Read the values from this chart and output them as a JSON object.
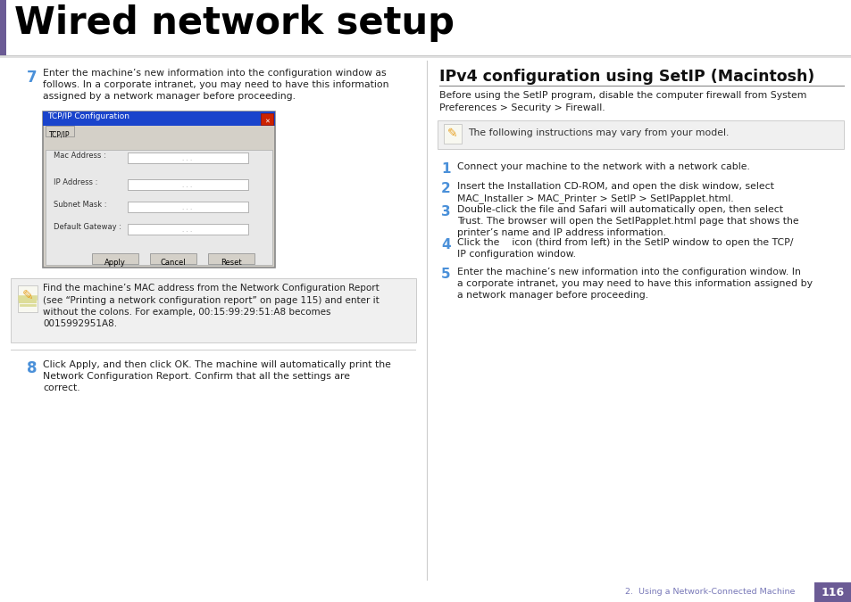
{
  "title": "Wired network setup",
  "title_color": "#000000",
  "accent_color": "#6B5B95",
  "bg_color": "#ffffff",
  "footer_text": "2.  Using a Network-Connected Machine",
  "footer_page": "116",
  "footer_bg": "#6B5B95",
  "footer_text_color": "#7878b8",
  "step_num_color": "#4a90d9",
  "note_bg_color": "#f0f0f0",
  "note_border_color": "#cccccc",
  "dialog_title_bg": "#1a44cc",
  "dialog_bg": "#d4d0c8",
  "dialog_border": "#888888",
  "section_left": {
    "step7_text_lines": [
      "Enter the machine’s new information into the configuration window as",
      "follows. In a corporate intranet, you may need to have this information",
      "assigned by a network manager before proceeding."
    ],
    "note_lines": [
      "Find the machine’s MAC address from the Network Configuration Report",
      "(see “Printing a network configuration report” on page 115) and enter it",
      "without the colons. For example, 00:15:99:29:51:A8 becomes",
      "0015992951A8."
    ],
    "note_bold_word": "Network Configuration Report",
    "step8_text_lines": [
      "Click Apply, and then click OK. The machine will automatically print the",
      "Network Configuration Report. Confirm that all the settings are",
      "correct."
    ]
  },
  "section_right": {
    "heading": "IPv4 configuration using SetIP (Macintosh)",
    "intro_lines": [
      "Before using the SetIP program, disable the computer firewall from System",
      "Preferences > Security > Firewall."
    ],
    "note_text": "The following instructions may vary from your model.",
    "steps": [
      {
        "num": "1",
        "lines": [
          "Connect your machine to the network with a network cable."
        ]
      },
      {
        "num": "2",
        "lines": [
          "Insert the Installation CD-ROM, and open the disk window, select",
          "MAC_Installer > MAC_Printer > SetIP > SetIPapplet.html."
        ]
      },
      {
        "num": "3",
        "lines": [
          "Double-click the file and Safari will automatically open, then select",
          "Trust. The browser will open the SetIPapplet.html page that shows the",
          "printer’s name and IP address information."
        ]
      },
      {
        "num": "4",
        "lines": [
          "Click the    icon (third from left) in the SetIP window to open the TCP/",
          "IP configuration window."
        ]
      },
      {
        "num": "5",
        "lines": [
          "Enter the machine’s new information into the configuration window. In",
          "a corporate intranet, you may need to have this information assigned by",
          "a network manager before proceeding."
        ]
      }
    ]
  },
  "dialog_fields": [
    "Mac Address :",
    "IP Address :",
    "Subnet Mask :",
    "Default Gateway :"
  ],
  "dialog_buttons": [
    "Apply",
    "Cancel",
    "Reset"
  ]
}
